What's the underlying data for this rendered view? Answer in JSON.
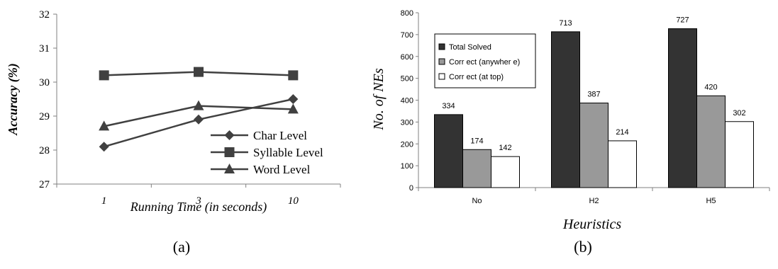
{
  "chart_data": [
    {
      "type": "line",
      "caption": "(a)",
      "title": "",
      "xlabel": "Running Time (in seconds)",
      "ylabel": "Accuracy (%)",
      "categories": [
        "1",
        "3",
        "10"
      ],
      "ylim": [
        27,
        32
      ],
      "yticks": [
        27,
        28,
        29,
        30,
        31,
        32
      ],
      "grid": false,
      "legend_position": "inside-right",
      "series": [
        {
          "name": "Char Level",
          "marker": "diamond",
          "values": [
            28.1,
            28.9,
            29.5
          ]
        },
        {
          "name": "Syllable Level",
          "marker": "square",
          "values": [
            30.2,
            30.3,
            30.2
          ]
        },
        {
          "name": "Word Level",
          "marker": "triangle",
          "values": [
            28.7,
            29.3,
            29.2
          ]
        }
      ],
      "colors": {
        "line": "#404040",
        "marker": "#404040"
      }
    },
    {
      "type": "bar",
      "caption": "(b)",
      "title": "",
      "xlabel": "Heuristics",
      "ylabel": "No. of NEs",
      "categories": [
        "No",
        "H2",
        "H5"
      ],
      "ylim": [
        0,
        800
      ],
      "yticks": [
        0,
        100,
        200,
        300,
        400,
        500,
        600,
        700,
        800
      ],
      "grid": false,
      "legend_position": "top-left",
      "series": [
        {
          "name": "Total Solved",
          "color": "#333333",
          "values": [
            334,
            713,
            727
          ]
        },
        {
          "name": "Corr ect (anywher e)",
          "color": "#999999",
          "values": [
            174,
            387,
            420
          ]
        },
        {
          "name": "Corr ect (at top)",
          "color": "#ffffff",
          "values": [
            142,
            214,
            302
          ]
        }
      ]
    }
  ]
}
